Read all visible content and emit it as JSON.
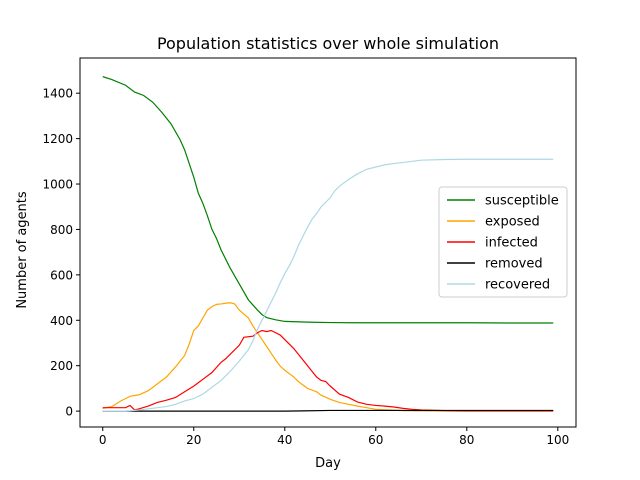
{
  "chart_data": {
    "type": "line",
    "title": "Population statistics over whole simulation",
    "xlabel": "Day",
    "ylabel": "Number of agents",
    "xlim": [
      -5,
      104
    ],
    "ylim": [
      -70,
      1555
    ],
    "xticks": [
      0,
      20,
      40,
      60,
      80,
      100
    ],
    "yticks": [
      0,
      200,
      400,
      600,
      800,
      1000,
      1200,
      1400
    ],
    "grid": false,
    "legend_position": "center-right",
    "series": [
      {
        "name": "susceptible",
        "color": "#008000",
        "points": [
          [
            0,
            1473
          ],
          [
            2,
            1460
          ],
          [
            5,
            1435
          ],
          [
            7,
            1405
          ],
          [
            9,
            1390
          ],
          [
            11,
            1360
          ],
          [
            13,
            1315
          ],
          [
            15,
            1265
          ],
          [
            17,
            1195
          ],
          [
            18,
            1150
          ],
          [
            19,
            1090
          ],
          [
            20,
            1030
          ],
          [
            21,
            960
          ],
          [
            22,
            915
          ],
          [
            23,
            860
          ],
          [
            24,
            800
          ],
          [
            25,
            760
          ],
          [
            26,
            710
          ],
          [
            27,
            670
          ],
          [
            28,
            630
          ],
          [
            30,
            560
          ],
          [
            32,
            490
          ],
          [
            34,
            445
          ],
          [
            35,
            425
          ],
          [
            36,
            412
          ],
          [
            38,
            402
          ],
          [
            40,
            395
          ],
          [
            45,
            392
          ],
          [
            50,
            390
          ],
          [
            55,
            389
          ],
          [
            60,
            389
          ],
          [
            70,
            389
          ],
          [
            80,
            389
          ],
          [
            90,
            388
          ],
          [
            99,
            388
          ]
        ]
      },
      {
        "name": "exposed",
        "color": "#ffa500",
        "points": [
          [
            0,
            12
          ],
          [
            2,
            20
          ],
          [
            4,
            45
          ],
          [
            6,
            65
          ],
          [
            8,
            72
          ],
          [
            10,
            90
          ],
          [
            12,
            120
          ],
          [
            14,
            150
          ],
          [
            16,
            195
          ],
          [
            18,
            245
          ],
          [
            19,
            295
          ],
          [
            20,
            355
          ],
          [
            21,
            375
          ],
          [
            22,
            410
          ],
          [
            23,
            445
          ],
          [
            24,
            460
          ],
          [
            25,
            470
          ],
          [
            26,
            472
          ],
          [
            27,
            475
          ],
          [
            28,
            477
          ],
          [
            29,
            472
          ],
          [
            30,
            445
          ],
          [
            32,
            410
          ],
          [
            33,
            375
          ],
          [
            34,
            345
          ],
          [
            35,
            315
          ],
          [
            36,
            285
          ],
          [
            37,
            255
          ],
          [
            38,
            225
          ],
          [
            39,
            198
          ],
          [
            40,
            180
          ],
          [
            42,
            150
          ],
          [
            43,
            130
          ],
          [
            44,
            115
          ],
          [
            45,
            100
          ],
          [
            47,
            85
          ],
          [
            48,
            70
          ],
          [
            50,
            52
          ],
          [
            52,
            38
          ],
          [
            54,
            30
          ],
          [
            56,
            22
          ],
          [
            58,
            15
          ],
          [
            60,
            8
          ],
          [
            63,
            5
          ],
          [
            66,
            2
          ],
          [
            70,
            1
          ],
          [
            80,
            0
          ],
          [
            99,
            0
          ]
        ]
      },
      {
        "name": "infected",
        "color": "#ff0000",
        "points": [
          [
            0,
            15
          ],
          [
            5,
            15
          ],
          [
            6,
            25
          ],
          [
            7,
            5
          ],
          [
            8,
            10
          ],
          [
            10,
            22
          ],
          [
            12,
            38
          ],
          [
            14,
            48
          ],
          [
            16,
            60
          ],
          [
            18,
            85
          ],
          [
            20,
            110
          ],
          [
            22,
            140
          ],
          [
            24,
            170
          ],
          [
            26,
            215
          ],
          [
            27,
            230
          ],
          [
            28,
            250
          ],
          [
            30,
            290
          ],
          [
            31,
            325
          ],
          [
            33,
            330
          ],
          [
            34,
            345
          ],
          [
            35,
            355
          ],
          [
            36,
            350
          ],
          [
            37,
            355
          ],
          [
            38,
            345
          ],
          [
            39,
            335
          ],
          [
            40,
            315
          ],
          [
            42,
            275
          ],
          [
            44,
            225
          ],
          [
            46,
            175
          ],
          [
            47,
            150
          ],
          [
            48,
            135
          ],
          [
            49,
            130
          ],
          [
            50,
            110
          ],
          [
            52,
            75
          ],
          [
            54,
            60
          ],
          [
            56,
            40
          ],
          [
            58,
            30
          ],
          [
            60,
            25
          ],
          [
            62,
            22
          ],
          [
            64,
            18
          ],
          [
            66,
            12
          ],
          [
            68,
            8
          ],
          [
            70,
            5
          ],
          [
            75,
            2
          ],
          [
            80,
            1
          ],
          [
            99,
            1
          ]
        ]
      },
      {
        "name": "removed",
        "color": "#000000",
        "points": [
          [
            0,
            0
          ],
          [
            10,
            0
          ],
          [
            20,
            0
          ],
          [
            30,
            0
          ],
          [
            40,
            0
          ],
          [
            44,
            1
          ],
          [
            50,
            3
          ],
          [
            60,
            3
          ],
          [
            70,
            3
          ],
          [
            80,
            3
          ],
          [
            90,
            3
          ],
          [
            99,
            3
          ]
        ]
      },
      {
        "name": "recovered",
        "color": "#add8e6",
        "points": [
          [
            0,
            0
          ],
          [
            5,
            0
          ],
          [
            8,
            5
          ],
          [
            10,
            10
          ],
          [
            12,
            15
          ],
          [
            14,
            20
          ],
          [
            16,
            30
          ],
          [
            18,
            45
          ],
          [
            20,
            55
          ],
          [
            22,
            75
          ],
          [
            24,
            105
          ],
          [
            26,
            135
          ],
          [
            28,
            175
          ],
          [
            30,
            220
          ],
          [
            32,
            270
          ],
          [
            33,
            310
          ],
          [
            34,
            360
          ],
          [
            35,
            400
          ],
          [
            36,
            440
          ],
          [
            37,
            480
          ],
          [
            38,
            520
          ],
          [
            39,
            565
          ],
          [
            40,
            605
          ],
          [
            41,
            640
          ],
          [
            42,
            680
          ],
          [
            43,
            730
          ],
          [
            44,
            770
          ],
          [
            45,
            810
          ],
          [
            46,
            845
          ],
          [
            47,
            870
          ],
          [
            48,
            900
          ],
          [
            50,
            940
          ],
          [
            51,
            970
          ],
          [
            52,
            990
          ],
          [
            54,
            1020
          ],
          [
            56,
            1045
          ],
          [
            58,
            1065
          ],
          [
            60,
            1075
          ],
          [
            62,
            1085
          ],
          [
            64,
            1090
          ],
          [
            66,
            1095
          ],
          [
            68,
            1100
          ],
          [
            70,
            1105
          ],
          [
            75,
            1108
          ],
          [
            80,
            1109
          ],
          [
            90,
            1109
          ],
          [
            99,
            1109
          ]
        ]
      }
    ]
  }
}
